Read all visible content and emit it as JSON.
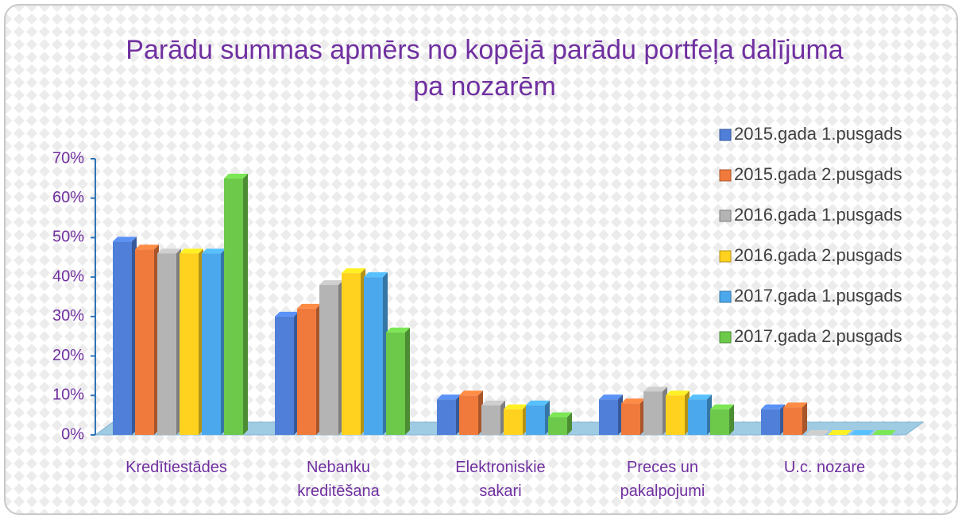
{
  "chart_data": {
    "type": "bar3d",
    "title": "Parādu summas apmērs no kopējā parādu portfeļa dalījuma pa nozarēm",
    "categories": [
      "Kredītiestādes",
      "Nebanku kreditēšana",
      "Elektroniskie sakari",
      "Preces un pakalpojumi",
      "U.c. nozare"
    ],
    "series": [
      {
        "name": "2015.gada 1.pusgads",
        "color": "#4f7fd8",
        "values": [
          49,
          30,
          9,
          9,
          6.5
        ]
      },
      {
        "name": "2015.gada 2.pusgads",
        "color": "#f07a3c",
        "values": [
          47,
          32,
          10,
          8,
          7
        ]
      },
      {
        "name": "2016.gada 1.pusgads",
        "color": "#b4b4b4",
        "values": [
          46,
          38,
          7.5,
          11,
          0
        ]
      },
      {
        "name": "2016.gada 2.pusgads",
        "color": "#ffd21f",
        "values": [
          46,
          41,
          6.5,
          10,
          0
        ]
      },
      {
        "name": "2017.gada 1.pusgads",
        "color": "#4ca8ec",
        "values": [
          46,
          40,
          7.5,
          9,
          0
        ]
      },
      {
        "name": "2017.gada 2.pusgads",
        "color": "#6cc94a",
        "values": [
          65,
          26,
          4.5,
          6.5,
          0
        ]
      }
    ],
    "ylim": [
      0,
      70
    ],
    "yticks": [
      {
        "value": 0,
        "label": "0%"
      },
      {
        "value": 10,
        "label": "10%"
      },
      {
        "value": 20,
        "label": "20%"
      },
      {
        "value": 30,
        "label": "30%"
      },
      {
        "value": 40,
        "label": "40%"
      },
      {
        "value": 50,
        "label": "50%"
      },
      {
        "value": 60,
        "label": "60%"
      },
      {
        "value": 70,
        "label": "70%"
      }
    ],
    "legend": "right"
  }
}
